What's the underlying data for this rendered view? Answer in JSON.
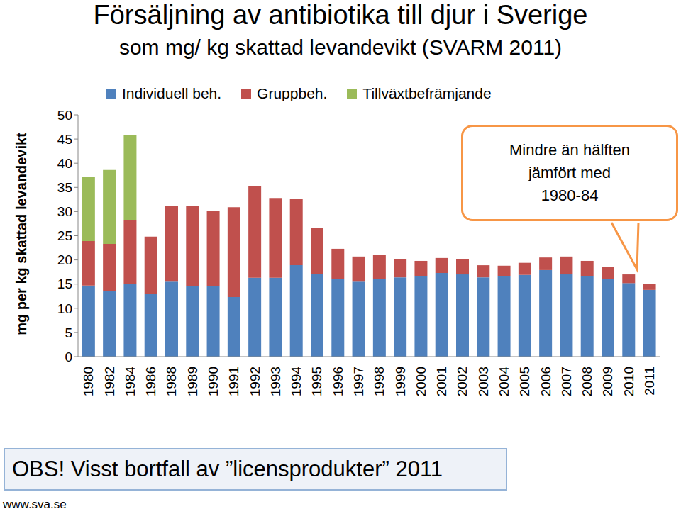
{
  "chart_data": {
    "type": "bar",
    "title": "Försäljning av antibiotika till djur i Sverige",
    "subtitle": "som mg/ kg skattad levandevikt (SVARM 2011)",
    "y_label": "mg per kg skattad levandevikt",
    "categories": [
      "1980",
      "1982",
      "1984",
      "1986",
      "1988",
      "1989",
      "1990",
      "1991",
      "1992",
      "1993",
      "1994",
      "1995",
      "1996",
      "1997",
      "1998",
      "1999",
      "2000",
      "2001",
      "2002",
      "2003",
      "2004",
      "2005",
      "2006",
      "2007",
      "2008",
      "2009",
      "2010",
      "2011"
    ],
    "series": [
      {
        "name": "Individuell beh.",
        "color": "#4f81bd",
        "values": [
          14.7,
          13.5,
          15.1,
          13.0,
          15.5,
          14.5,
          14.5,
          12.3,
          16.3,
          16.3,
          18.9,
          17.0,
          16.1,
          15.5,
          16.1,
          16.4,
          16.7,
          17.3,
          17.0,
          16.4,
          16.6,
          16.9,
          17.9,
          17.0,
          16.7,
          16.0,
          15.2,
          13.8
        ]
      },
      {
        "name": "Gruppbeh.",
        "color": "#c0504d",
        "values": [
          9.2,
          9.8,
          13.1,
          11.8,
          15.7,
          16.6,
          15.7,
          18.6,
          19.0,
          16.5,
          13.7,
          9.7,
          6.2,
          5.2,
          5.0,
          3.8,
          3.1,
          3.1,
          3.1,
          2.5,
          2.2,
          2.5,
          2.6,
          3.7,
          3.1,
          2.5,
          1.8,
          1.3
        ]
      },
      {
        "name": "Tillväxtbefrämjande",
        "color": "#9bbb59",
        "values": [
          13.3,
          15.3,
          17.7,
          0,
          0,
          0,
          0,
          0,
          0,
          0,
          0,
          0,
          0,
          0,
          0,
          0,
          0,
          0,
          0,
          0,
          0,
          0,
          0,
          0,
          0,
          0,
          0,
          0
        ]
      }
    ],
    "ylim": [
      0,
      50
    ],
    "yticks": [
      0,
      5,
      10,
      15,
      20,
      25,
      30,
      35,
      40,
      45,
      50
    ],
    "stacked": true,
    "grid": false,
    "legend": "top",
    "annotation": [
      "Mindre än hälften",
      "jämfört med",
      "1980-84"
    ],
    "note": "OBS! Visst bortfall av ”licensprodukter” 2011",
    "source": "www.sva.se"
  }
}
